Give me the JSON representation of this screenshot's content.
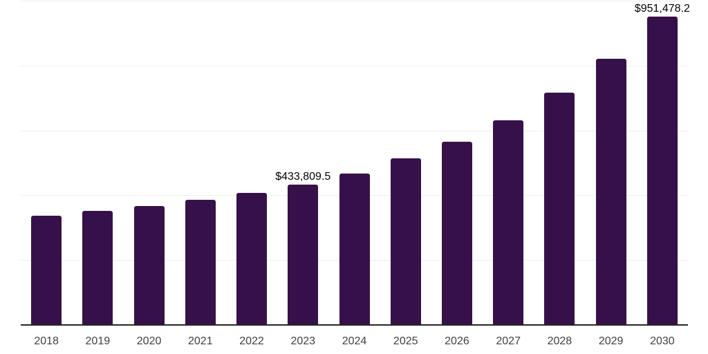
{
  "chart": {
    "title": "",
    "colors": {
      "background": "#ffffff",
      "bar": "#361149",
      "axis_line": "#262626",
      "gridline": "#f0f0f0",
      "tick_label": "#404040",
      "data_label": "#000000"
    }
  },
  "chart_data": {
    "type": "bar",
    "categories": [
      "2018",
      "2019",
      "2020",
      "2021",
      "2022",
      "2023",
      "2024",
      "2025",
      "2026",
      "2027",
      "2028",
      "2029",
      "2030"
    ],
    "values": [
      336000,
      351000,
      366000,
      385000,
      407000,
      433809.5,
      468000,
      513000,
      566000,
      632000,
      717000,
      820000,
      951478.2
    ],
    "data_labels": [
      "",
      "",
      "",
      "",
      "",
      "$433,809.5",
      "",
      "",
      "",
      "",
      "",
      "",
      "$951,478.2"
    ],
    "title": "",
    "xlabel": "",
    "ylabel": "",
    "ylim": [
      0,
      1000000
    ],
    "gridline_step": 200000,
    "grid": "horizontal-only",
    "legend": "none",
    "y_axis_labels": "none"
  }
}
